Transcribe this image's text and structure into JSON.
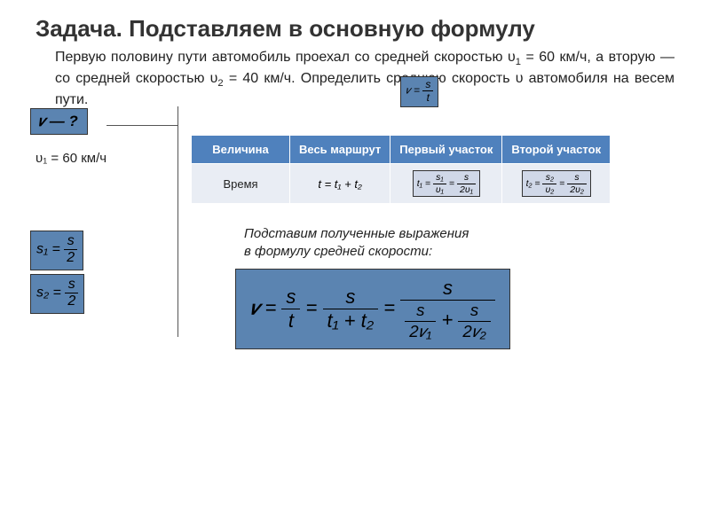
{
  "title": "Задача. Подставляем в основную формулу",
  "problem_line1": "Первую половину пути автомобиль проехал со средней скоростью υ",
  "problem_v1_sub": "1",
  "problem_v1_rest": " = 60 км/ч, а вторую — со средней скоростью υ",
  "problem_v2_sub": "2",
  "problem_v2_rest": " = 40 км/ч. Определить среднюю скорость υ автомобиля на весем пути.",
  "given": {
    "find": "𝑣 — ?",
    "v1": "υ₁ = 60 км/ч",
    "s1_lhs": "s₁ =",
    "s1_num": "s",
    "s1_den": "2",
    "s2_lhs": "s₂ =",
    "s2_num": "s",
    "s2_den": "2"
  },
  "vst_formula": {
    "lhs": "𝑣 =",
    "num": "s",
    "den": "t"
  },
  "table": {
    "headers": [
      "Величина",
      "Весь маршрут",
      "Первый участок",
      "Второй участок"
    ],
    "row_label": "Время",
    "whole": "t = t₁ + t₂",
    "t1": {
      "lhs": "t₁ =",
      "f1n": "s₁",
      "f1d": "υ₁",
      "eq": "=",
      "f2n": "s",
      "f2d": "2υ₁"
    },
    "t2": {
      "lhs": "t₂ =",
      "f1n": "s₂",
      "f1d": "υ₂",
      "eq": "=",
      "f2n": "s",
      "f2d": "2υ₂"
    }
  },
  "subst_text1": "Подставим полученные выражения",
  "subst_text2": "в формулу средней скорости:",
  "bigformula": {
    "v": "𝑣",
    "eq": " = ",
    "st_n": "s",
    "st_d": "t",
    "t12_n": "s",
    "t12_d": "t₁ + t₂",
    "last_n": "s",
    "last_d1_n": "s",
    "last_d1_d": "2𝑣₁",
    "last_plus": " + ",
    "last_d2_n": "s",
    "last_d2_d": "2𝑣₂"
  },
  "colors": {
    "box_bg": "#5b84b1",
    "table_header": "#4f81bd",
    "table_cell": "#e9edf4",
    "mini_bg": "#d0d8e8"
  }
}
